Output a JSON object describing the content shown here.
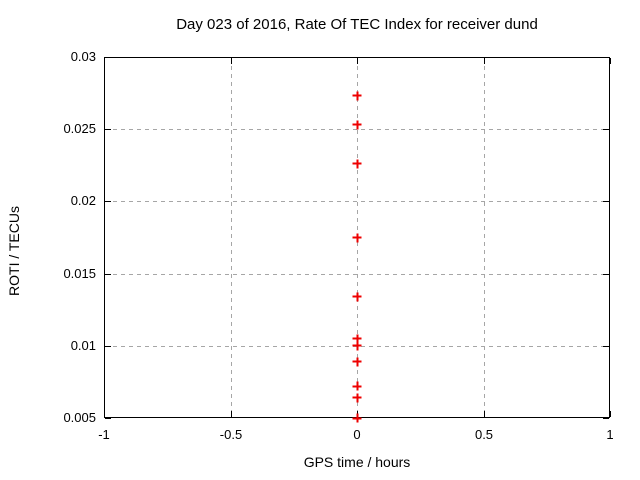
{
  "chart": {
    "title": "Day 023 of 2016, Rate Of TEC Index for receiver dund",
    "x_axis": {
      "label": "GPS time / hours",
      "min": -1,
      "max": 1,
      "tick_values": [
        -1,
        -0.5,
        0,
        0.5,
        1
      ],
      "tick_labels": [
        "-1",
        "-0.5",
        "0",
        "0.5",
        "1"
      ],
      "grid_values": [
        -0.5,
        0,
        0.5
      ]
    },
    "y_axis": {
      "label": "ROTI / TECUs",
      "min": 0.005,
      "max": 0.03,
      "tick_values": [
        0.005,
        0.01,
        0.015,
        0.02,
        0.025,
        0.03
      ],
      "tick_labels": [
        "0.005",
        "0.01",
        "0.015",
        "0.02",
        "0.025",
        "0.03"
      ],
      "grid_values": [
        0.01,
        0.015,
        0.02,
        0.025
      ]
    },
    "colors": {
      "background": "#ffffff",
      "border": "#000000",
      "grid": "#a6a6a6",
      "text": "#000000",
      "marker": "#ee0000"
    }
  },
  "chart_data": {
    "type": "scatter",
    "title": "Day 023 of 2016, Rate Of TEC Index for receiver dund",
    "xlabel": "GPS time / hours",
    "ylabel": "ROTI / TECUs",
    "xlim": [
      -1,
      1
    ],
    "ylim": [
      0.005,
      0.03
    ],
    "grid": true,
    "legend": false,
    "marker": "plus",
    "marker_color": "#ee0000",
    "series": [
      {
        "name": "ROTI",
        "x": [
          0,
          0,
          0,
          0,
          0,
          0,
          0,
          0,
          0,
          0,
          0
        ],
        "y": [
          0.0273,
          0.0253,
          0.0226,
          0.0175,
          0.0134,
          0.0105,
          0.01,
          0.0089,
          0.0072,
          0.0064,
          0.005
        ]
      }
    ]
  }
}
